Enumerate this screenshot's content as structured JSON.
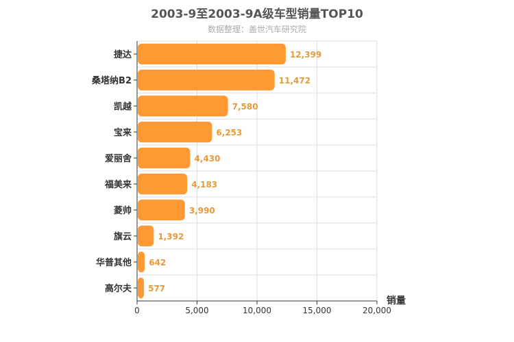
{
  "chart_data": {
    "type": "bar",
    "orientation": "horizontal",
    "title": "2003-9至2003-9A级车型销量TOP10",
    "subtitle": "数据整理：盖世汽车研究院",
    "xlabel": "销量",
    "ylabel": "",
    "xlim": [
      0,
      20000
    ],
    "ticks": [
      0,
      5000,
      10000,
      15000,
      20000
    ],
    "tick_labels": [
      "0",
      "5,000",
      "10,000",
      "15,000",
      "20,000"
    ],
    "grid": true,
    "legend": "none",
    "bar_color": "#ff9933",
    "label_color": "#e69a3a",
    "categories": [
      "捷达",
      "桑塔纳B2",
      "凯越",
      "宝来",
      "爱丽舍",
      "福美来",
      "菱帅",
      "旗云",
      "华普其他",
      "高尔夫"
    ],
    "values": [
      12399,
      11472,
      7580,
      6253,
      4430,
      4183,
      3990,
      1392,
      642,
      577
    ],
    "value_labels": [
      "12,399",
      "11,472",
      "7,580",
      "6,253",
      "4,430",
      "4,183",
      "3,990",
      "1,392",
      "642",
      "577"
    ]
  }
}
